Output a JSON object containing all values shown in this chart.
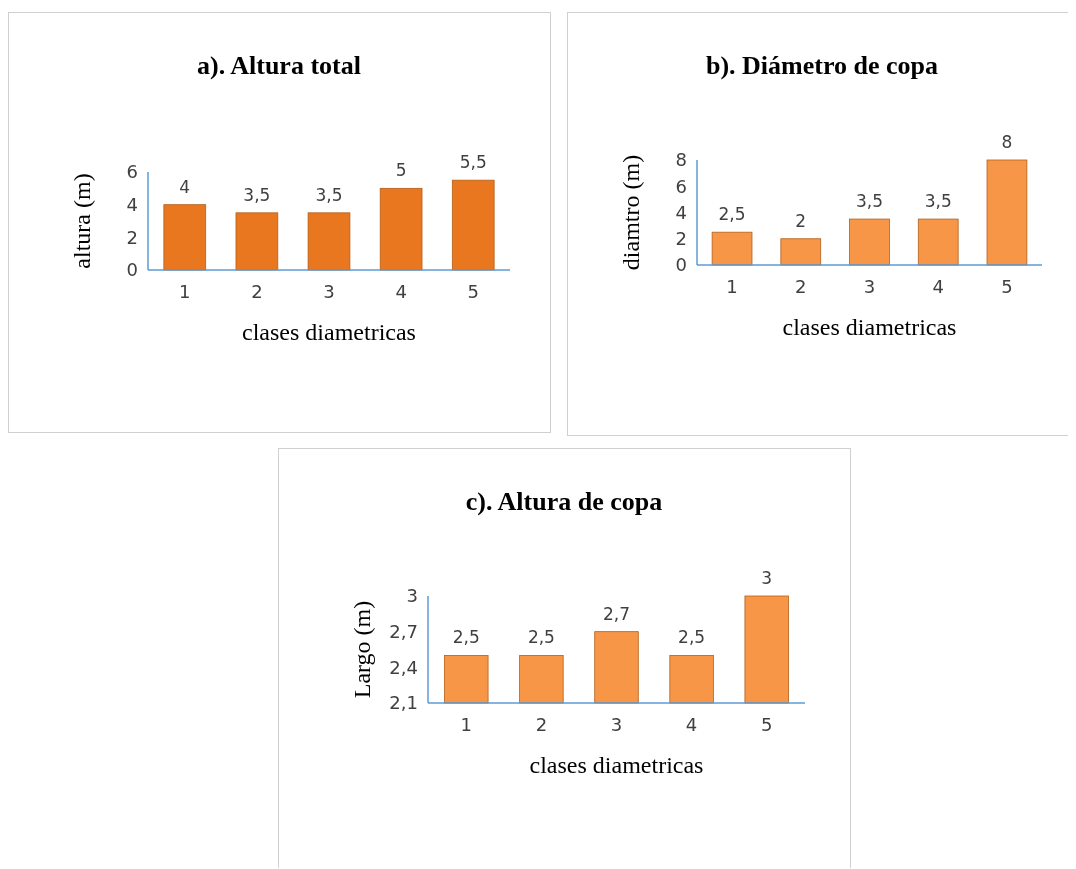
{
  "chart_data": [
    {
      "type": "bar",
      "title": "a). Altura total",
      "xlabel": "clases diametricas",
      "ylabel": "altura (m)",
      "categories": [
        "1",
        "2",
        "3",
        "4",
        "5"
      ],
      "values": [
        4,
        3.5,
        3.5,
        5,
        5.5
      ],
      "color": "#e8771f",
      "value_labels": [
        "4",
        "3,5",
        "3,5",
        "5",
        "5,5"
      ],
      "ylim": [
        0,
        6
      ],
      "yticks": [
        0,
        2,
        4,
        6
      ]
    },
    {
      "type": "bar",
      "title": "b). Diámetro de copa",
      "xlabel": "clases diametricas",
      "ylabel": "diamtro (m)",
      "categories": [
        "1",
        "2",
        "3",
        "4",
        "5"
      ],
      "values": [
        2.5,
        2,
        3.5,
        3.5,
        8
      ],
      "color": "#f79646",
      "value_labels": [
        "2,5",
        "2",
        "3,5",
        "3,5",
        "8"
      ],
      "ylim": [
        0,
        8
      ],
      "yticks": [
        0,
        2,
        4,
        6,
        8
      ]
    },
    {
      "type": "bar",
      "title": "c). Altura de copa",
      "xlabel": "clases diametricas",
      "ylabel": "Largo (m)",
      "categories": [
        "1",
        "2",
        "3",
        "4",
        "5"
      ],
      "values": [
        2.5,
        2.5,
        2.7,
        2.5,
        3
      ],
      "color": "#f79646",
      "value_labels": [
        "2,5",
        "2,5",
        "2,7",
        "2,5",
        "3"
      ],
      "ylim": [
        2.1,
        3
      ],
      "yticks": [
        {
          "value": 2.1,
          "label": "2,1"
        },
        {
          "value": 2.4,
          "label": "2,4"
        },
        {
          "value": 2.7,
          "label": "2,7"
        },
        3
      ]
    }
  ]
}
